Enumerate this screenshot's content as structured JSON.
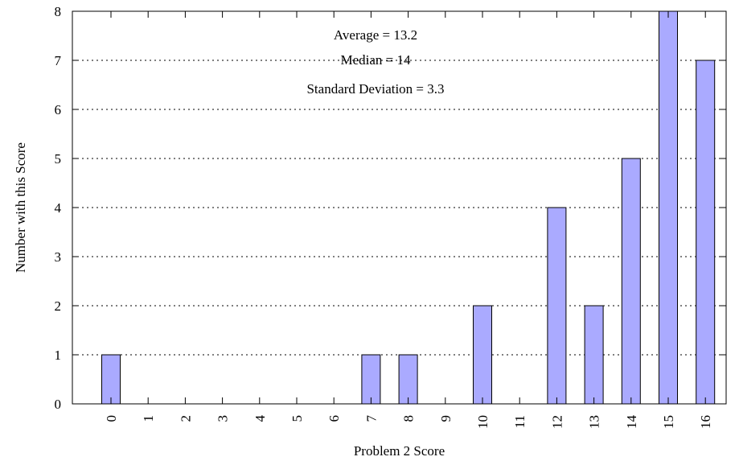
{
  "chart_data": {
    "type": "bar",
    "title": "",
    "xlabel": "Problem 2 Score",
    "ylabel": "Number with this Score",
    "categories": [
      "0",
      "1",
      "2",
      "3",
      "4",
      "5",
      "6",
      "7",
      "8",
      "9",
      "10",
      "11",
      "12",
      "13",
      "14",
      "15",
      "16"
    ],
    "values": [
      1,
      0,
      0,
      0,
      0,
      0,
      0,
      1,
      1,
      0,
      2,
      0,
      4,
      2,
      5,
      8,
      7
    ],
    "ylim": [
      0,
      8
    ],
    "yticks": [
      "0",
      "1",
      "2",
      "3",
      "4",
      "5",
      "6",
      "7",
      "8"
    ],
    "grid": true,
    "bar_color": "#aaaaff",
    "annotations": [
      "Average = 13.2",
      "Median = 14",
      "Standard Deviation = 3.3"
    ]
  }
}
